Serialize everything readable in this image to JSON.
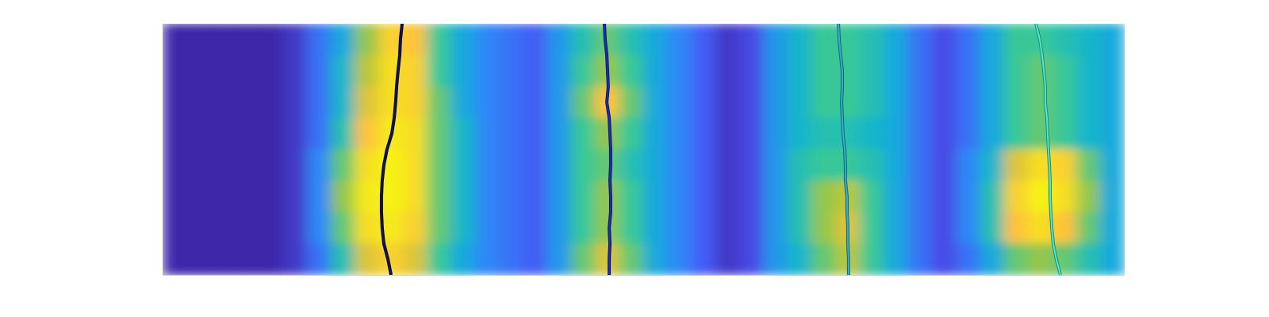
{
  "chart_data": {
    "type": "heatmap",
    "xlim": [
      0,
      40
    ],
    "ylim": [
      0,
      8
    ],
    "xticks": [],
    "yticks": [],
    "tick_labels": false,
    "cells": {
      "zlim": [
        0,
        1
      ],
      "values": [
        [
          0,
          0,
          0,
          0,
          0,
          0.05,
          0.2,
          0.35,
          0.6,
          0.8,
          0.75,
          0.5,
          0.35,
          0.25,
          0.2,
          0.15,
          0.3,
          0.45,
          0.55,
          0.45,
          0.35,
          0.25,
          0.15,
          0.05,
          0.1,
          0.3,
          0.4,
          0.5,
          0.5,
          0.45,
          0.35,
          0.2,
          0.1,
          0.2,
          0.35,
          0.5,
          0.5,
          0.45,
          0.4,
          0.35
        ],
        [
          0,
          0,
          0,
          0,
          0,
          0.05,
          0.2,
          0.4,
          0.65,
          0.85,
          0.8,
          0.5,
          0.35,
          0.25,
          0.2,
          0.15,
          0.3,
          0.5,
          0.6,
          0.5,
          0.35,
          0.25,
          0.15,
          0.05,
          0.1,
          0.3,
          0.4,
          0.5,
          0.5,
          0.45,
          0.35,
          0.2,
          0.1,
          0.2,
          0.35,
          0.5,
          0.55,
          0.5,
          0.4,
          0.35
        ],
        [
          0,
          0,
          0,
          0,
          0,
          0.05,
          0.2,
          0.4,
          0.7,
          0.85,
          0.8,
          0.55,
          0.35,
          0.25,
          0.2,
          0.15,
          0.3,
          0.55,
          0.75,
          0.55,
          0.35,
          0.25,
          0.15,
          0.05,
          0.1,
          0.3,
          0.4,
          0.5,
          0.5,
          0.45,
          0.35,
          0.2,
          0.1,
          0.2,
          0.35,
          0.5,
          0.55,
          0.5,
          0.4,
          0.35
        ],
        [
          0,
          0,
          0,
          0,
          0,
          0.05,
          0.2,
          0.45,
          0.75,
          0.9,
          0.85,
          0.55,
          0.4,
          0.25,
          0.2,
          0.15,
          0.3,
          0.5,
          0.6,
          0.5,
          0.35,
          0.25,
          0.15,
          0.05,
          0.1,
          0.3,
          0.4,
          0.45,
          0.45,
          0.4,
          0.35,
          0.2,
          0.1,
          0.2,
          0.35,
          0.5,
          0.55,
          0.5,
          0.4,
          0.35
        ],
        [
          0,
          0,
          0,
          0,
          0,
          0.05,
          0.25,
          0.55,
          0.85,
          0.95,
          0.85,
          0.55,
          0.4,
          0.25,
          0.2,
          0.15,
          0.3,
          0.5,
          0.55,
          0.45,
          0.35,
          0.25,
          0.15,
          0.05,
          0.1,
          0.3,
          0.45,
          0.5,
          0.5,
          0.45,
          0.35,
          0.2,
          0.1,
          0.25,
          0.4,
          0.7,
          0.85,
          0.8,
          0.55,
          0.35
        ],
        [
          0,
          0,
          0,
          0,
          0,
          0.05,
          0.25,
          0.6,
          0.9,
          0.95,
          0.85,
          0.55,
          0.4,
          0.25,
          0.2,
          0.15,
          0.3,
          0.5,
          0.6,
          0.5,
          0.35,
          0.25,
          0.15,
          0.05,
          0.1,
          0.3,
          0.45,
          0.6,
          0.65,
          0.5,
          0.35,
          0.2,
          0.1,
          0.25,
          0.45,
          0.8,
          0.95,
          0.85,
          0.6,
          0.35
        ],
        [
          0,
          0,
          0,
          0,
          0,
          0.05,
          0.25,
          0.55,
          0.85,
          0.9,
          0.8,
          0.55,
          0.4,
          0.25,
          0.2,
          0.15,
          0.3,
          0.5,
          0.6,
          0.5,
          0.35,
          0.25,
          0.15,
          0.05,
          0.1,
          0.3,
          0.45,
          0.6,
          0.7,
          0.5,
          0.35,
          0.2,
          0.1,
          0.25,
          0.45,
          0.75,
          0.85,
          0.75,
          0.55,
          0.35
        ],
        [
          0,
          0,
          0,
          0,
          0,
          0.05,
          0.2,
          0.45,
          0.7,
          0.8,
          0.7,
          0.5,
          0.35,
          0.25,
          0.2,
          0.15,
          0.3,
          0.55,
          0.7,
          0.55,
          0.35,
          0.25,
          0.15,
          0.05,
          0.1,
          0.3,
          0.4,
          0.55,
          0.65,
          0.5,
          0.35,
          0.2,
          0.1,
          0.2,
          0.35,
          0.55,
          0.6,
          0.55,
          0.45,
          0.35
        ]
      ]
    },
    "series": [
      {
        "type": "line",
        "color": "#10106a",
        "y": [
          0,
          0.5,
          1,
          1.5,
          2,
          2.5,
          3,
          3.5,
          4,
          4.5,
          5,
          5.5,
          6,
          6.5,
          7,
          7.5,
          8
        ],
        "x": [
          9.96,
          9.89,
          9.86,
          9.79,
          9.73,
          9.69,
          9.63,
          9.53,
          9.33,
          9.2,
          9.13,
          9.1,
          9.1,
          9.13,
          9.2,
          9.37,
          9.5
        ]
      },
      {
        "type": "line",
        "color": "#1a2bbd",
        "y": [
          0,
          0.5,
          1,
          1.5,
          2,
          2.5,
          3,
          3.5,
          4,
          4.5,
          5,
          5.5,
          6,
          6.5,
          7,
          7.5,
          8
        ],
        "x": [
          18.37,
          18.4,
          18.47,
          18.5,
          18.53,
          18.47,
          18.57,
          18.6,
          18.63,
          18.63,
          18.6,
          18.63,
          18.63,
          18.57,
          18.6,
          18.57,
          18.57
        ]
      },
      {
        "type": "line",
        "color": "#2fb0d0",
        "y": [
          0,
          0.5,
          1,
          1.5,
          2,
          2.5,
          3,
          3.5,
          4,
          4.5,
          5,
          5.5,
          6,
          6.5,
          7,
          7.5,
          8
        ],
        "x": [
          28.1,
          28.13,
          28.19,
          28.26,
          28.26,
          28.23,
          28.26,
          28.29,
          28.36,
          28.39,
          28.39,
          28.46,
          28.46,
          28.49,
          28.49,
          28.52,
          28.52
        ]
      },
      {
        "type": "line",
        "color": "#48ecd0",
        "y": [
          0,
          0.5,
          1,
          1.5,
          2,
          2.5,
          3,
          3.5,
          4,
          4.5,
          5,
          5.5,
          6,
          6.5,
          7,
          7.5,
          8
        ],
        "x": [
          36.31,
          36.47,
          36.57,
          36.64,
          36.7,
          36.7,
          36.77,
          36.8,
          36.83,
          36.87,
          36.9,
          36.9,
          36.93,
          36.97,
          37.03,
          37.16,
          37.33
        ]
      }
    ]
  }
}
